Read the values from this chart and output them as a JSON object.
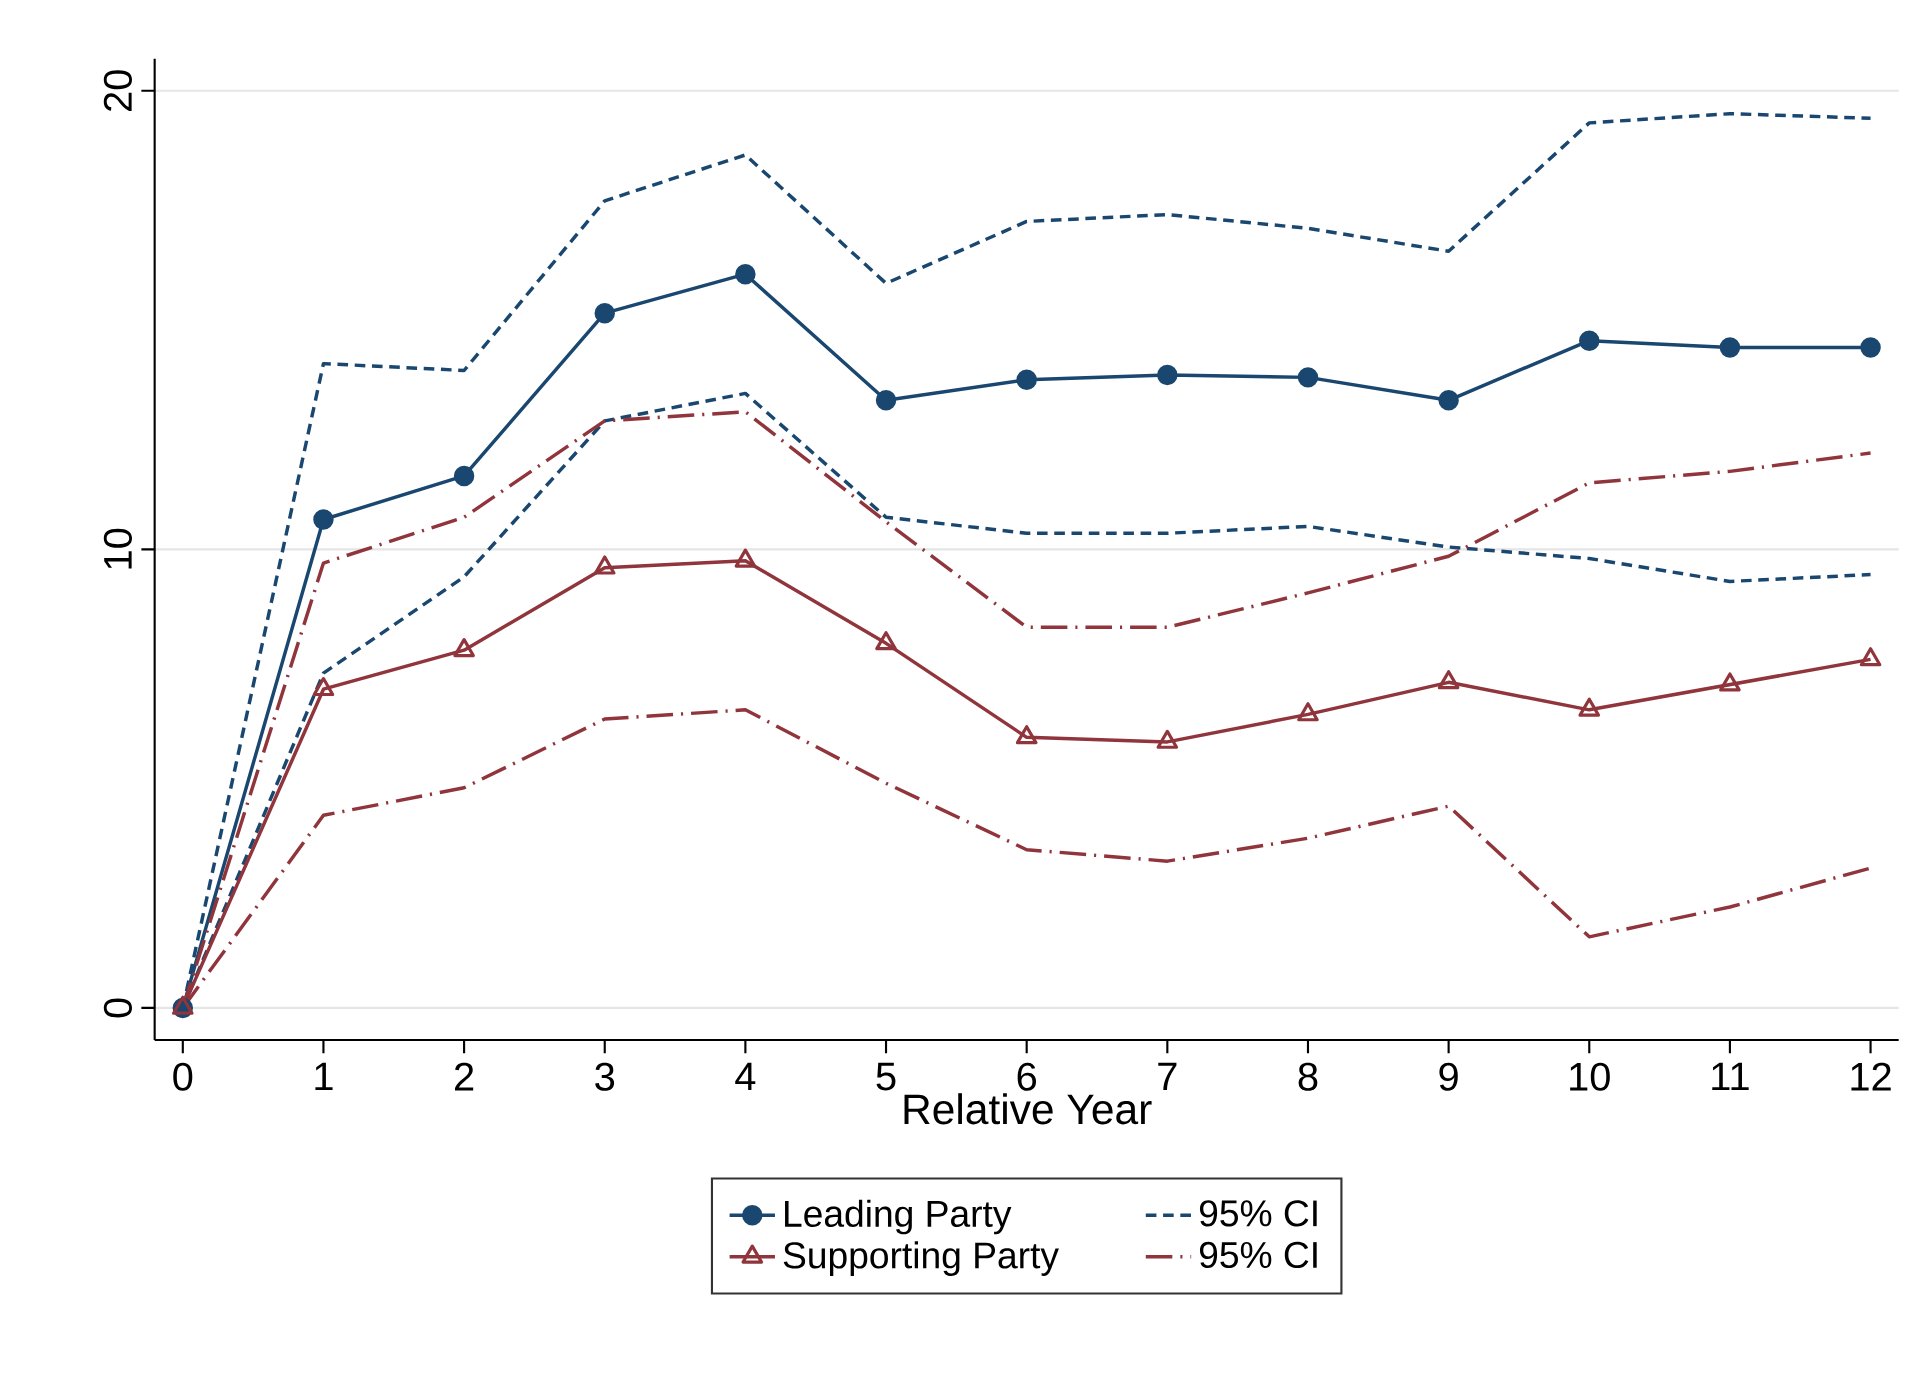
{
  "chart_data": {
    "type": "line",
    "xlabel": "Relative Year",
    "x": [
      0,
      1,
      2,
      3,
      4,
      5,
      6,
      7,
      8,
      9,
      10,
      11,
      12
    ],
    "xlim": [
      -0.2,
      12.2
    ],
    "xticks": [
      0,
      1,
      2,
      3,
      4,
      5,
      6,
      7,
      8,
      9,
      10,
      11,
      12
    ],
    "ylim": [
      -0.7,
      20.7
    ],
    "yticks": [
      0,
      10,
      20
    ],
    "grid": "y",
    "legend": "bottom",
    "series": [
      {
        "name": "Leading Party",
        "color": "#1a476f",
        "marker": "circle",
        "line_style": "solid",
        "values": [
          0,
          10.65,
          11.6,
          15.15,
          16.0,
          13.25,
          13.7,
          13.8,
          13.75,
          13.25,
          14.55,
          14.4,
          14.4
        ]
      },
      {
        "name": "95% CI",
        "color": "#1a476f",
        "marker": "none",
        "line_style": "dotted",
        "values": [
          0,
          14.05,
          13.9,
          17.6,
          18.6,
          15.8,
          17.15,
          17.3,
          17.0,
          16.5,
          19.3,
          19.5,
          19.4
        ]
      },
      {
        "color": "#1a476f",
        "marker": "none",
        "line_style": "dotted",
        "values": [
          0,
          7.3,
          9.4,
          12.8,
          13.4,
          10.7,
          10.35,
          10.35,
          10.5,
          10.05,
          9.8,
          9.3,
          9.45
        ]
      },
      {
        "name": "Supporting Party",
        "color": "#90353b",
        "marker": "triangle",
        "line_style": "solid",
        "values": [
          0,
          6.95,
          7.8,
          9.6,
          9.75,
          7.95,
          5.9,
          5.8,
          6.4,
          7.1,
          6.5,
          7.05,
          7.6
        ]
      },
      {
        "name": "95% CI",
        "color": "#90353b",
        "marker": "none",
        "line_style": "dashed",
        "values": [
          0,
          9.7,
          10.7,
          12.8,
          13.0,
          10.6,
          8.3,
          8.3,
          9.05,
          9.85,
          11.45,
          11.7,
          12.1
        ]
      },
      {
        "color": "#90353b",
        "marker": "none",
        "line_style": "dashed",
        "values": [
          0,
          4.2,
          4.8,
          6.3,
          6.5,
          4.9,
          3.45,
          3.2,
          3.7,
          4.4,
          1.55,
          2.2,
          3.05
        ]
      }
    ]
  }
}
